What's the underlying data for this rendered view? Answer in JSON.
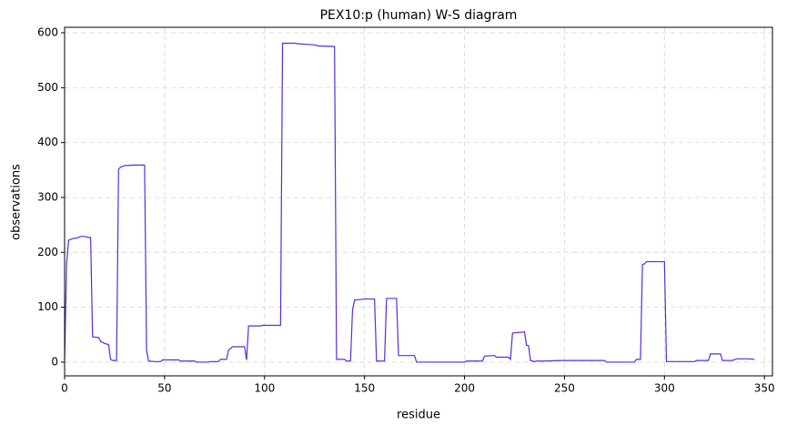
{
  "chart_data": {
    "type": "line",
    "title": "PEX10:p (human) W-S diagram",
    "x_label": "residue",
    "y_label": "observations",
    "x": [
      0,
      1,
      2,
      4,
      6,
      8,
      10,
      12,
      13,
      14,
      17,
      18,
      20,
      22,
      23,
      24,
      26,
      27,
      28,
      30,
      35,
      40,
      41,
      42,
      45,
      48,
      49,
      57,
      58,
      65,
      66,
      72,
      73,
      77,
      78,
      81,
      82,
      84,
      90,
      91,
      92,
      98,
      99,
      108,
      109,
      115,
      117,
      125,
      127,
      135,
      136,
      140,
      141,
      143,
      144,
      145,
      150,
      155,
      156,
      160,
      161,
      166,
      167,
      175,
      176,
      200,
      201,
      209,
      210,
      215,
      216,
      222,
      223,
      224,
      230,
      231,
      232,
      233,
      235,
      236,
      240,
      248,
      270,
      271,
      285,
      286,
      288,
      289,
      290,
      291,
      300,
      301,
      315,
      316,
      322,
      323,
      328,
      329,
      334,
      336,
      342,
      345
    ],
    "values": [
      5,
      180,
      222,
      225,
      226,
      229,
      229,
      227,
      227,
      46,
      45,
      38,
      34,
      32,
      5,
      3,
      3,
      352,
      355,
      358,
      359,
      359,
      22,
      2,
      1,
      1,
      4,
      4,
      2,
      2,
      0,
      0,
      1,
      1,
      5,
      5,
      22,
      28,
      28,
      4,
      66,
      66,
      67,
      67,
      581,
      581,
      580,
      578,
      576,
      575,
      5,
      5,
      2,
      2,
      95,
      113,
      115,
      115,
      2,
      2,
      116,
      116,
      12,
      12,
      0,
      0,
      2,
      2,
      11,
      12,
      9,
      9,
      5,
      53,
      55,
      31,
      30,
      3,
      1,
      2,
      2,
      3,
      3,
      0,
      0,
      5,
      5,
      178,
      179,
      183,
      183,
      1,
      1,
      3,
      3,
      15,
      15,
      3,
      3,
      6,
      6,
      5
    ],
    "color": "#5b2bd8",
    "xlim": [
      0,
      354
    ],
    "ylim": [
      -25,
      610
    ],
    "xticks": [
      0,
      50,
      100,
      150,
      200,
      250,
      300,
      350
    ],
    "yticks": [
      0,
      100,
      200,
      300,
      400,
      500,
      600
    ],
    "grid": true
  }
}
